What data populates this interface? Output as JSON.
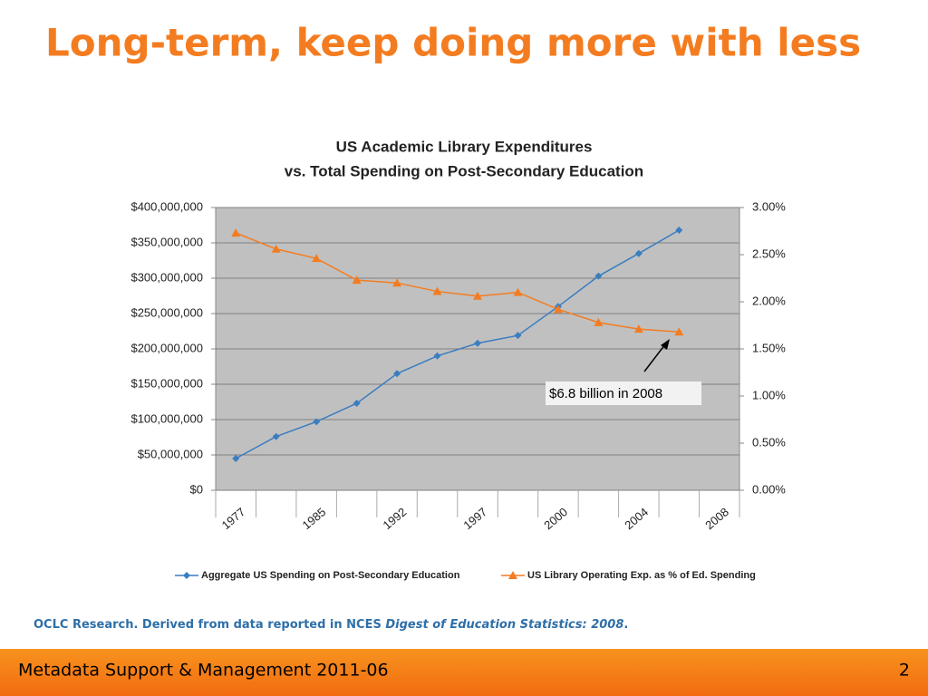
{
  "slide": {
    "title": "Long-term, keep doing more with less",
    "source": {
      "text": "OCLC Research. Derived from data reported in NCES ",
      "italic": "Digest of Education Statistics: 2008",
      "end": "."
    },
    "footer": "Metadata Support & Management 2011-06",
    "page": "2"
  },
  "chart_data": {
    "type": "line",
    "title": "US Academic Library Expenditures",
    "subtitle": "vs. Total Spending on Post-Secondary Education",
    "categories": [
      "1977",
      null,
      "1985",
      null,
      "1992",
      null,
      "1997",
      null,
      "2000",
      null,
      "2004",
      null,
      "2008"
    ],
    "series": [
      {
        "name": "Aggregate US Spending on Post-Secondary Education",
        "color": "#3a7dc0",
        "marker": "diamond",
        "axis": "y",
        "values": [
          45000000,
          76000000,
          97000000,
          123000000,
          165000000,
          190000000,
          208000000,
          219000000,
          260000000,
          303000000,
          335000000,
          368000000,
          null
        ]
      },
      {
        "name": "US Library Operating Exp. as % of Ed. Spending",
        "color": "#f47c20",
        "marker": "triangle",
        "axis": "y2",
        "values": [
          2.73,
          2.56,
          2.46,
          2.23,
          2.2,
          2.11,
          2.06,
          2.1,
          1.92,
          1.78,
          1.71,
          1.68,
          null
        ]
      }
    ],
    "ylim": [
      0,
      400000000
    ],
    "yticks": [
      {
        "value": 0,
        "label": "$0"
      },
      {
        "value": 50000000,
        "label": "$50,000,000"
      },
      {
        "value": 100000000,
        "label": "$100,000,000"
      },
      {
        "value": 150000000,
        "label": "$150,000,000"
      },
      {
        "value": 200000000,
        "label": "$200,000,000"
      },
      {
        "value": 250000000,
        "label": "$250,000,000"
      },
      {
        "value": 300000000,
        "label": "$300,000,000"
      },
      {
        "value": 350000000,
        "label": "$350,000,000"
      },
      {
        "value": 400000000,
        "label": "$400,000,000"
      }
    ],
    "y2lim": [
      0,
      3
    ],
    "y2ticks": [
      {
        "value": 0,
        "label": "0.00%"
      },
      {
        "value": 0.5,
        "label": "0.50%"
      },
      {
        "value": 1,
        "label": "1.00%"
      },
      {
        "value": 1.5,
        "label": "1.50%"
      },
      {
        "value": 2,
        "label": "2.00%"
      },
      {
        "value": 2.5,
        "label": "2.50%"
      },
      {
        "value": 3,
        "label": "3.00%"
      }
    ],
    "grid": true,
    "legend": "bottom",
    "annotation": "$6.8 billion in 2008"
  }
}
